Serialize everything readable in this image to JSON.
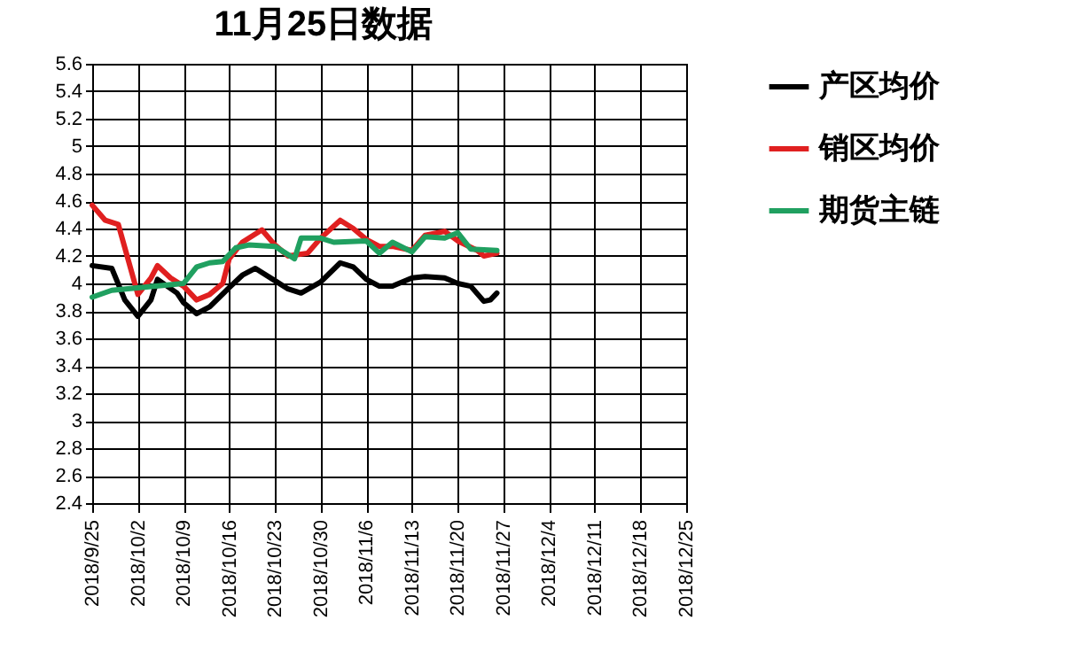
{
  "chart_data": {
    "type": "line",
    "title": "11月25日数据",
    "series": [
      {
        "name": "产区均价",
        "color": "#000000",
        "x": [
          "2018-09-25",
          "2018-09-28",
          "2018-09-30",
          "2018-10-02",
          "2018-10-04",
          "2018-10-05",
          "2018-10-08",
          "2018-10-09",
          "2018-10-11",
          "2018-10-13",
          "2018-10-16",
          "2018-10-18",
          "2018-10-20",
          "2018-10-23",
          "2018-10-25",
          "2018-10-27",
          "2018-10-30",
          "2018-11-02",
          "2018-11-04",
          "2018-11-06",
          "2018-11-08",
          "2018-11-10",
          "2018-11-13",
          "2018-11-15",
          "2018-11-18",
          "2018-11-20",
          "2018-11-22",
          "2018-11-24",
          "2018-11-25",
          "2018-11-26"
        ],
        "values": [
          4.13,
          4.11,
          3.88,
          3.76,
          3.88,
          4.03,
          3.93,
          3.86,
          3.78,
          3.83,
          3.97,
          4.06,
          4.11,
          4.02,
          3.96,
          3.93,
          4.01,
          4.15,
          4.12,
          4.03,
          3.98,
          3.98,
          4.04,
          4.05,
          4.04,
          4.0,
          3.98,
          3.87,
          3.88,
          3.93
        ]
      },
      {
        "name": "销区均价",
        "color": "#e02020",
        "x": [
          "2018-09-25",
          "2018-09-27",
          "2018-09-29",
          "2018-10-02",
          "2018-10-04",
          "2018-10-05",
          "2018-10-07",
          "2018-10-09",
          "2018-10-11",
          "2018-10-13",
          "2018-10-15",
          "2018-10-16",
          "2018-10-18",
          "2018-10-21",
          "2018-10-23",
          "2018-10-25",
          "2018-10-28",
          "2018-10-30",
          "2018-11-02",
          "2018-11-04",
          "2018-11-06",
          "2018-11-08",
          "2018-11-10",
          "2018-11-13",
          "2018-11-15",
          "2018-11-18",
          "2018-11-20",
          "2018-11-23",
          "2018-11-24",
          "2018-11-26"
        ],
        "values": [
          4.57,
          4.46,
          4.43,
          3.92,
          4.04,
          4.13,
          4.04,
          3.98,
          3.88,
          3.92,
          4.0,
          4.18,
          4.3,
          4.39,
          4.28,
          4.2,
          4.22,
          4.33,
          4.46,
          4.4,
          4.32,
          4.27,
          4.27,
          4.24,
          4.35,
          4.38,
          4.31,
          4.24,
          4.2,
          4.22
        ]
      },
      {
        "name": "期货主链",
        "color": "#20a060",
        "x": [
          "2018-09-25",
          "2018-09-28",
          "2018-10-09",
          "2018-10-11",
          "2018-10-13",
          "2018-10-15",
          "2018-10-17",
          "2018-10-19",
          "2018-10-23",
          "2018-10-26",
          "2018-10-27",
          "2018-10-30",
          "2018-11-01",
          "2018-11-06",
          "2018-11-08",
          "2018-11-10",
          "2018-11-13",
          "2018-11-15",
          "2018-11-18",
          "2018-11-20",
          "2018-11-22",
          "2018-11-26"
        ],
        "values": [
          3.9,
          3.95,
          4.0,
          4.12,
          4.15,
          4.16,
          4.26,
          4.28,
          4.27,
          4.18,
          4.33,
          4.33,
          4.3,
          4.31,
          4.22,
          4.3,
          4.23,
          4.34,
          4.33,
          4.37,
          4.25,
          4.24
        ]
      }
    ],
    "xlim": [
      "2018-09-25",
      "2018-12-25"
    ],
    "xticks": [
      {
        "value": "2018-09-25",
        "label": "2018/9/25"
      },
      {
        "value": "2018-10-02",
        "label": "2018/10/2"
      },
      {
        "value": "2018-10-09",
        "label": "2018/10/9"
      },
      {
        "value": "2018-10-16",
        "label": "2018/10/16"
      },
      {
        "value": "2018-10-23",
        "label": "2018/10/23"
      },
      {
        "value": "2018-10-30",
        "label": "2018/10/30"
      },
      {
        "value": "2018-11-06",
        "label": "2018/11/6"
      },
      {
        "value": "2018-11-13",
        "label": "2018/11/13"
      },
      {
        "value": "2018-11-20",
        "label": "2018/11/20"
      },
      {
        "value": "2018-11-27",
        "label": "2018/11/27"
      },
      {
        "value": "2018-12-04",
        "label": "2018/12/4"
      },
      {
        "value": "2018-12-11",
        "label": "2018/12/11"
      },
      {
        "value": "2018-12-18",
        "label": "2018/12/18"
      },
      {
        "value": "2018-12-25",
        "label": "2018/12/25"
      }
    ],
    "ylim": [
      2.4,
      5.6
    ],
    "yticks": [
      2.4,
      2.6,
      2.8,
      3,
      3.2,
      3.4,
      3.6,
      3.8,
      4,
      4.2,
      4.4,
      4.6,
      4.8,
      5,
      5.2,
      5.4,
      5.6
    ],
    "grid": true,
    "legend": "right",
    "line_style": "solid",
    "marker": "none"
  }
}
